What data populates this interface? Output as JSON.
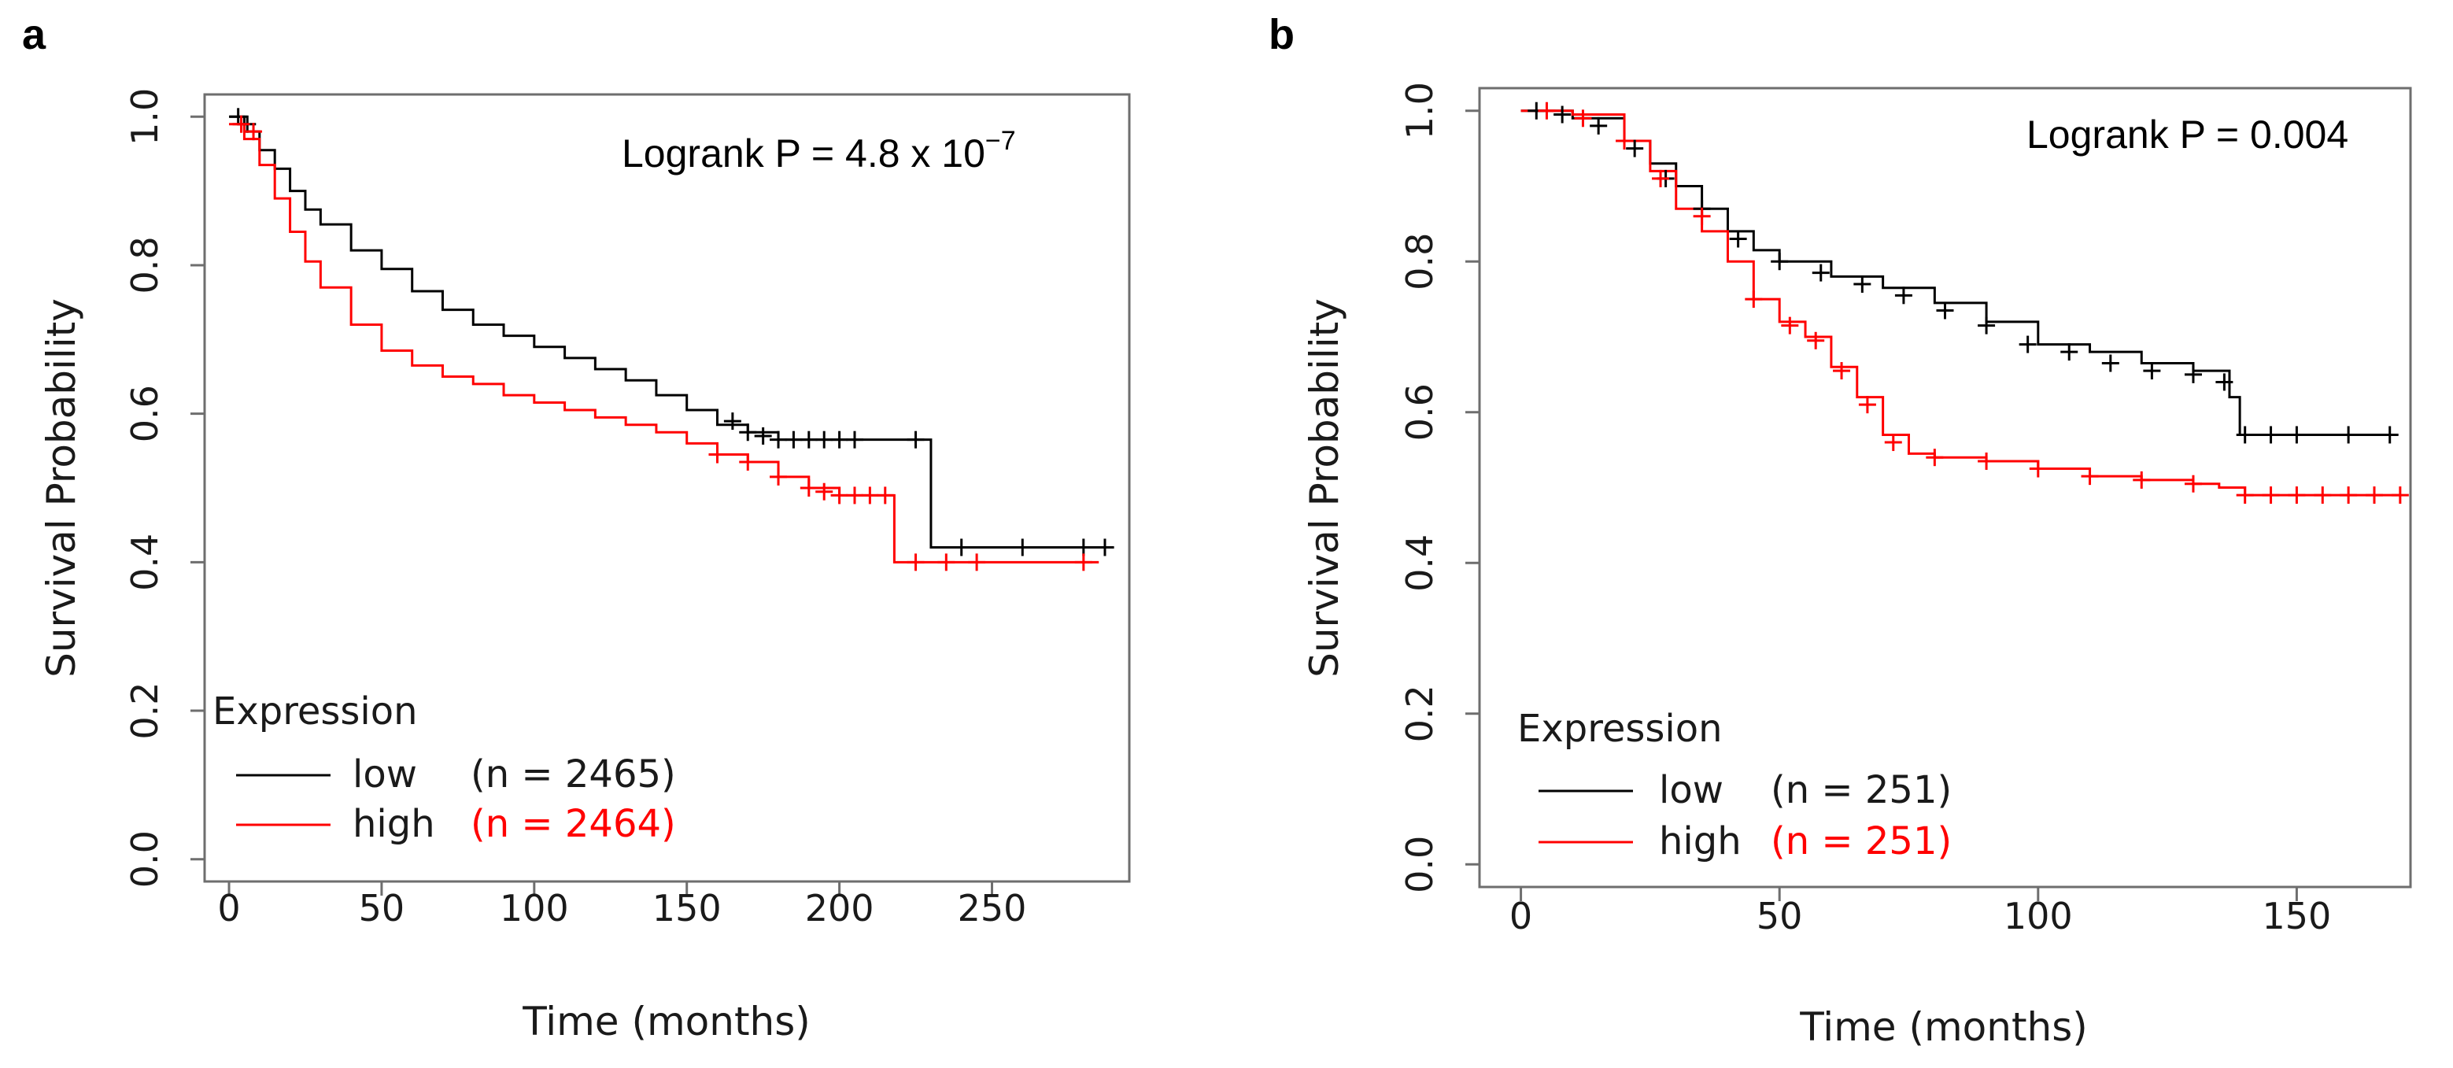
{
  "colors": {
    "low": "#000000",
    "high": "#ff0000",
    "frame": "#6e6e6e"
  },
  "chart_data": [
    {
      "panel_label": "a",
      "type": "line",
      "step": true,
      "xlabel": "Time (months)",
      "ylabel": "Survival Probability",
      "xlim": [
        -8,
        295
      ],
      "ylim": [
        -0.03,
        1.03
      ],
      "x_ticks": [
        0,
        50,
        100,
        150,
        200,
        250
      ],
      "y_ticks": [
        0.0,
        0.2,
        0.4,
        0.6,
        0.8,
        1.0
      ],
      "y_tick_labels": [
        "0.0",
        "0.2",
        "0.4",
        "0.6",
        "0.8",
        "1.0"
      ],
      "annotation": {
        "prefix": "Logrank P = 4.8 x 10",
        "superscript": "−7"
      },
      "legend": {
        "title": "Expression",
        "placement": "bottom-left"
      },
      "series": [
        {
          "name": "low",
          "n_label": "(n = 2465)",
          "color_key": "low",
          "x": [
            0,
            5,
            10,
            15,
            20,
            25,
            30,
            40,
            50,
            60,
            70,
            80,
            90,
            100,
            110,
            120,
            130,
            140,
            150,
            160,
            170,
            180,
            200,
            228,
            230,
            290
          ],
          "y": [
            1.0,
            0.98,
            0.955,
            0.93,
            0.9,
            0.875,
            0.855,
            0.82,
            0.795,
            0.765,
            0.74,
            0.72,
            0.705,
            0.69,
            0.675,
            0.66,
            0.645,
            0.625,
            0.605,
            0.585,
            0.575,
            0.565,
            0.565,
            0.565,
            0.42,
            0.42
          ],
          "censor_x": [
            3,
            6,
            165,
            170,
            175,
            180,
            185,
            190,
            195,
            200,
            205,
            225,
            240,
            260,
            280,
            287
          ],
          "censor_y": [
            1.0,
            0.99,
            0.59,
            0.575,
            0.57,
            0.565,
            0.565,
            0.565,
            0.565,
            0.565,
            0.565,
            0.565,
            0.42,
            0.42,
            0.42,
            0.42
          ]
        },
        {
          "name": "high",
          "n_label": "(n = 2464)",
          "color_key": "high",
          "x": [
            0,
            5,
            10,
            15,
            20,
            25,
            30,
            40,
            50,
            60,
            70,
            80,
            90,
            100,
            110,
            120,
            130,
            140,
            150,
            160,
            170,
            180,
            190,
            200,
            215,
            218,
            285
          ],
          "y": [
            0.99,
            0.97,
            0.935,
            0.89,
            0.845,
            0.805,
            0.77,
            0.72,
            0.685,
            0.665,
            0.65,
            0.64,
            0.625,
            0.615,
            0.605,
            0.595,
            0.585,
            0.575,
            0.56,
            0.545,
            0.535,
            0.515,
            0.5,
            0.49,
            0.49,
            0.4,
            0.4
          ],
          "censor_x": [
            4,
            8,
            160,
            170,
            180,
            190,
            195,
            200,
            205,
            210,
            215,
            225,
            235,
            245,
            280
          ],
          "censor_y": [
            0.99,
            0.98,
            0.545,
            0.535,
            0.515,
            0.5,
            0.495,
            0.49,
            0.49,
            0.49,
            0.49,
            0.4,
            0.4,
            0.4,
            0.4
          ]
        }
      ]
    },
    {
      "panel_label": "b",
      "type": "line",
      "step": true,
      "xlabel": "Time (months)",
      "ylabel": "Survival Probability",
      "xlim": [
        -8,
        172
      ],
      "ylim": [
        -0.03,
        1.03
      ],
      "x_ticks": [
        0,
        50,
        100,
        150
      ],
      "y_ticks": [
        0.0,
        0.2,
        0.4,
        0.6,
        0.8,
        1.0
      ],
      "y_tick_labels": [
        "0.0",
        "0.2",
        "0.4",
        "0.6",
        "0.8",
        "1.0"
      ],
      "annotation": {
        "prefix": "Logrank P = 0.004",
        "superscript": ""
      },
      "legend": {
        "title": "Expression",
        "placement": "bottom-left"
      },
      "series": [
        {
          "name": "low",
          "n_label": "(n = 251)",
          "color_key": "low",
          "x": [
            0,
            10,
            20,
            25,
            30,
            35,
            40,
            45,
            50,
            60,
            70,
            80,
            90,
            100,
            110,
            120,
            130,
            137,
            139,
            168
          ],
          "y": [
            1.0,
            0.99,
            0.96,
            0.93,
            0.9,
            0.87,
            0.84,
            0.815,
            0.8,
            0.78,
            0.765,
            0.745,
            0.72,
            0.69,
            0.68,
            0.665,
            0.655,
            0.62,
            0.57,
            0.57
          ],
          "censor_x": [
            3,
            8,
            15,
            22,
            28,
            35,
            42,
            50,
            58,
            66,
            74,
            82,
            90,
            98,
            106,
            114,
            122,
            130,
            136,
            140,
            145,
            150,
            160,
            168
          ],
          "censor_y": [
            1.0,
            0.995,
            0.98,
            0.95,
            0.91,
            0.87,
            0.83,
            0.8,
            0.785,
            0.77,
            0.755,
            0.735,
            0.715,
            0.69,
            0.68,
            0.665,
            0.655,
            0.65,
            0.64,
            0.57,
            0.57,
            0.57,
            0.57,
            0.57
          ]
        },
        {
          "name": "high",
          "n_label": "(n = 251)",
          "color_key": "high",
          "x": [
            0,
            10,
            20,
            25,
            30,
            35,
            40,
            45,
            50,
            55,
            60,
            65,
            70,
            75,
            80,
            90,
            100,
            110,
            120,
            130,
            135,
            140,
            170
          ],
          "y": [
            1.0,
            0.995,
            0.96,
            0.92,
            0.87,
            0.84,
            0.8,
            0.75,
            0.72,
            0.7,
            0.66,
            0.62,
            0.57,
            0.545,
            0.54,
            0.535,
            0.525,
            0.515,
            0.51,
            0.505,
            0.5,
            0.49,
            0.49
          ],
          "censor_x": [
            5,
            12,
            20,
            27,
            35,
            45,
            52,
            57,
            62,
            67,
            72,
            80,
            90,
            100,
            110,
            120,
            130,
            140,
            145,
            150,
            155,
            160,
            165,
            170
          ],
          "censor_y": [
            1.0,
            0.99,
            0.96,
            0.91,
            0.86,
            0.75,
            0.715,
            0.695,
            0.655,
            0.61,
            0.56,
            0.54,
            0.535,
            0.525,
            0.515,
            0.51,
            0.505,
            0.49,
            0.49,
            0.49,
            0.49,
            0.49,
            0.49,
            0.49
          ]
        }
      ]
    }
  ]
}
